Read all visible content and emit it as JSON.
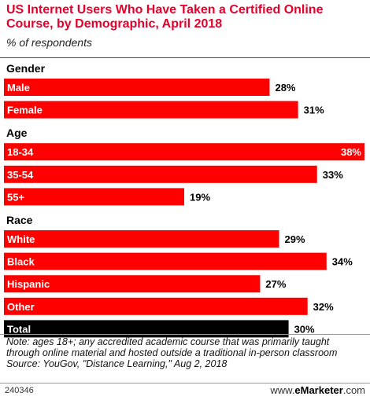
{
  "header": {
    "title": "US Internet Users Who Have Taken a Certified Online Course, by Demographic, April 2018",
    "subtitle": "% of respondents"
  },
  "chart_data": {
    "type": "bar",
    "orientation": "horizontal",
    "unit": "%",
    "bar_color": "#ff0000",
    "total_color": "#000000",
    "groups": [
      {
        "name": "Gender",
        "items": [
          {
            "label": "Male",
            "value": 28,
            "display": "28%"
          },
          {
            "label": "Female",
            "value": 31,
            "display": "31%"
          }
        ]
      },
      {
        "name": "Age",
        "items": [
          {
            "label": "18-34",
            "value": 38,
            "display": "38%"
          },
          {
            "label": "35-54",
            "value": 33,
            "display": "33%"
          },
          {
            "label": "55+",
            "value": 19,
            "display": "19%"
          }
        ]
      },
      {
        "name": "Race",
        "items": [
          {
            "label": "White",
            "value": 29,
            "display": "29%"
          },
          {
            "label": "Black",
            "value": 34,
            "display": "34%"
          },
          {
            "label": "Hispanic",
            "value": 27,
            "display": "27%"
          },
          {
            "label": "Other",
            "value": 32,
            "display": "32%"
          }
        ]
      }
    ],
    "total": {
      "label": "Total",
      "value": 30,
      "display": "30%"
    }
  },
  "footer": {
    "note": "Note: ages 18+; any accredited academic course that was primarily taught through online material and hosted outside a traditional in-person classroom",
    "source": "Source: YouGov, \"Distance Learning,\" Aug 2, 2018",
    "chart_id": "240346",
    "brand_prefix": "www.",
    "brand_name": "eMarketer",
    "brand_suffix": ".com"
  }
}
